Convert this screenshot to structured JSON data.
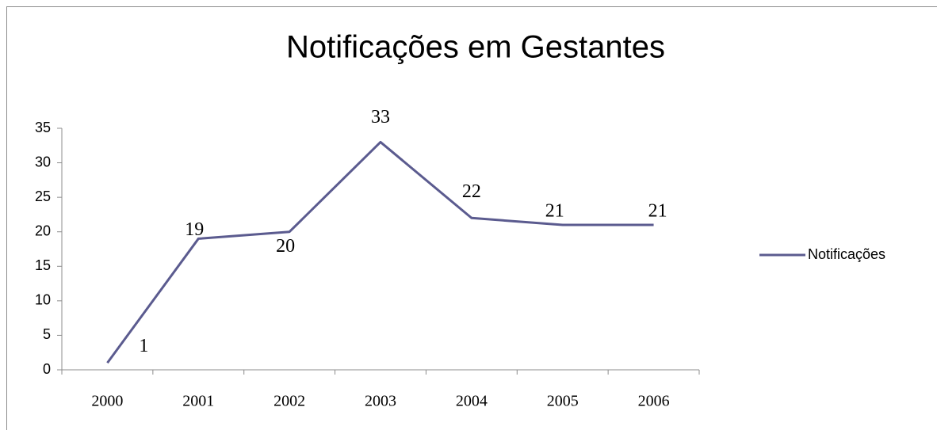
{
  "chart_data": {
    "type": "line",
    "title": "Notificações em Gestantes",
    "categories": [
      "2000",
      "2001",
      "2002",
      "2003",
      "2004",
      "2005",
      "2006"
    ],
    "series": [
      {
        "name": "Notificações",
        "color": "#5b5b8f",
        "values": [
          1,
          19,
          20,
          33,
          22,
          21,
          21
        ]
      }
    ],
    "ylim": [
      0,
      35
    ],
    "yticks": [
      0,
      5,
      10,
      15,
      20,
      25,
      30,
      35
    ],
    "grid": false,
    "legend": "right"
  }
}
